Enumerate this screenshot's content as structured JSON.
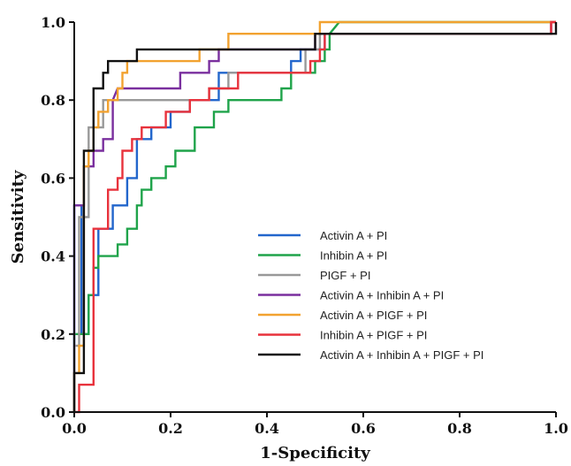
{
  "chart_data": {
    "type": "line",
    "xlabel": "1-Specificity",
    "ylabel": "Sensitivity",
    "xlim": [
      0,
      1
    ],
    "ylim": [
      0,
      1
    ],
    "x_ticks": [
      "0.0",
      "0.2",
      "0.4",
      "0.6",
      "0.8",
      "1.0"
    ],
    "y_ticks": [
      "0.0",
      "0.2",
      "0.4",
      "0.6",
      "0.8",
      "1.0"
    ],
    "grid": false,
    "legend_position": "bottom-right",
    "series": [
      {
        "name": "Activin A + PI",
        "color": "#2266cc",
        "points": [
          [
            0,
            0
          ],
          [
            0,
            0.53
          ],
          [
            0.015,
            0.53
          ],
          [
            0.015,
            0.2
          ],
          [
            0.03,
            0.2
          ],
          [
            0.03,
            0.3
          ],
          [
            0.05,
            0.3
          ],
          [
            0.05,
            0.47
          ],
          [
            0.08,
            0.47
          ],
          [
            0.08,
            0.53
          ],
          [
            0.11,
            0.53
          ],
          [
            0.11,
            0.6
          ],
          [
            0.13,
            0.6
          ],
          [
            0.13,
            0.7
          ],
          [
            0.16,
            0.7
          ],
          [
            0.16,
            0.73
          ],
          [
            0.2,
            0.73
          ],
          [
            0.2,
            0.77
          ],
          [
            0.24,
            0.77
          ],
          [
            0.24,
            0.8
          ],
          [
            0.3,
            0.8
          ],
          [
            0.3,
            0.87
          ],
          [
            0.45,
            0.87
          ],
          [
            0.45,
            0.9
          ],
          [
            0.47,
            0.9
          ],
          [
            0.47,
            0.93
          ],
          [
            0.52,
            0.93
          ],
          [
            0.52,
            0.97
          ],
          [
            0.99,
            0.97
          ],
          [
            0.99,
            1.0
          ],
          [
            1.0,
            1.0
          ]
        ]
      },
      {
        "name": "Inhibin A + PI",
        "color": "#1fa34a",
        "points": [
          [
            0,
            0
          ],
          [
            0,
            0.2
          ],
          [
            0.03,
            0.2
          ],
          [
            0.03,
            0.3
          ],
          [
            0.04,
            0.3
          ],
          [
            0.04,
            0.37
          ],
          [
            0.05,
            0.37
          ],
          [
            0.05,
            0.4
          ],
          [
            0.09,
            0.4
          ],
          [
            0.09,
            0.43
          ],
          [
            0.11,
            0.43
          ],
          [
            0.11,
            0.47
          ],
          [
            0.13,
            0.47
          ],
          [
            0.13,
            0.53
          ],
          [
            0.14,
            0.53
          ],
          [
            0.14,
            0.57
          ],
          [
            0.16,
            0.57
          ],
          [
            0.16,
            0.6
          ],
          [
            0.19,
            0.6
          ],
          [
            0.19,
            0.63
          ],
          [
            0.21,
            0.63
          ],
          [
            0.21,
            0.67
          ],
          [
            0.25,
            0.67
          ],
          [
            0.25,
            0.73
          ],
          [
            0.29,
            0.73
          ],
          [
            0.29,
            0.77
          ],
          [
            0.32,
            0.77
          ],
          [
            0.32,
            0.8
          ],
          [
            0.43,
            0.8
          ],
          [
            0.43,
            0.83
          ],
          [
            0.45,
            0.83
          ],
          [
            0.45,
            0.87
          ],
          [
            0.5,
            0.87
          ],
          [
            0.5,
            0.9
          ],
          [
            0.52,
            0.9
          ],
          [
            0.52,
            0.93
          ],
          [
            0.53,
            0.93
          ],
          [
            0.53,
            0.97
          ],
          [
            0.55,
            1.0
          ],
          [
            1.0,
            1.0
          ]
        ]
      },
      {
        "name": "PIGF + PI",
        "color": "#999999",
        "points": [
          [
            0,
            0
          ],
          [
            0,
            0.17
          ],
          [
            0.01,
            0.17
          ],
          [
            0.01,
            0.5
          ],
          [
            0.03,
            0.5
          ],
          [
            0.03,
            0.73
          ],
          [
            0.06,
            0.73
          ],
          [
            0.06,
            0.8
          ],
          [
            0.28,
            0.8
          ],
          [
            0.28,
            0.83
          ],
          [
            0.32,
            0.83
          ],
          [
            0.32,
            0.87
          ],
          [
            0.48,
            0.87
          ],
          [
            0.48,
            0.93
          ],
          [
            0.51,
            0.93
          ],
          [
            0.51,
            0.97
          ],
          [
            0.99,
            0.97
          ],
          [
            0.99,
            1.0
          ],
          [
            1.0,
            1.0
          ]
        ]
      },
      {
        "name": "Activin A + Inhibin A + PI",
        "color": "#7a2f9e",
        "points": [
          [
            0,
            0
          ],
          [
            0,
            0.53
          ],
          [
            0.02,
            0.53
          ],
          [
            0.02,
            0.63
          ],
          [
            0.04,
            0.63
          ],
          [
            0.04,
            0.67
          ],
          [
            0.06,
            0.67
          ],
          [
            0.06,
            0.7
          ],
          [
            0.08,
            0.7
          ],
          [
            0.08,
            0.8
          ],
          [
            0.09,
            0.83
          ],
          [
            0.22,
            0.83
          ],
          [
            0.22,
            0.87
          ],
          [
            0.28,
            0.87
          ],
          [
            0.28,
            0.9
          ],
          [
            0.3,
            0.9
          ],
          [
            0.3,
            0.93
          ],
          [
            0.5,
            0.93
          ],
          [
            0.5,
            0.97
          ],
          [
            0.99,
            0.97
          ],
          [
            0.99,
            1.0
          ],
          [
            1.0,
            1.0
          ]
        ]
      },
      {
        "name": "Activin A + PIGF + PI",
        "color": "#f2a230",
        "points": [
          [
            0,
            0
          ],
          [
            0,
            0.1
          ],
          [
            0.01,
            0.1
          ],
          [
            0.01,
            0.17
          ],
          [
            0.02,
            0.17
          ],
          [
            0.02,
            0.63
          ],
          [
            0.03,
            0.63
          ],
          [
            0.03,
            0.67
          ],
          [
            0.04,
            0.67
          ],
          [
            0.04,
            0.73
          ],
          [
            0.05,
            0.73
          ],
          [
            0.05,
            0.77
          ],
          [
            0.07,
            0.77
          ],
          [
            0.07,
            0.8
          ],
          [
            0.09,
            0.8
          ],
          [
            0.09,
            0.83
          ],
          [
            0.1,
            0.83
          ],
          [
            0.1,
            0.87
          ],
          [
            0.11,
            0.87
          ],
          [
            0.11,
            0.9
          ],
          [
            0.26,
            0.9
          ],
          [
            0.26,
            0.93
          ],
          [
            0.32,
            0.93
          ],
          [
            0.32,
            0.97
          ],
          [
            0.51,
            0.97
          ],
          [
            0.51,
            1.0
          ],
          [
            1.0,
            1.0
          ]
        ]
      },
      {
        "name": "Inhibin A + PIGF + PI",
        "color": "#e8323c",
        "points": [
          [
            0,
            0
          ],
          [
            0.01,
            0
          ],
          [
            0.01,
            0.07
          ],
          [
            0.04,
            0.07
          ],
          [
            0.04,
            0.47
          ],
          [
            0.07,
            0.47
          ],
          [
            0.07,
            0.57
          ],
          [
            0.09,
            0.57
          ],
          [
            0.09,
            0.6
          ],
          [
            0.1,
            0.6
          ],
          [
            0.1,
            0.67
          ],
          [
            0.12,
            0.67
          ],
          [
            0.12,
            0.7
          ],
          [
            0.14,
            0.7
          ],
          [
            0.14,
            0.73
          ],
          [
            0.19,
            0.73
          ],
          [
            0.19,
            0.77
          ],
          [
            0.24,
            0.77
          ],
          [
            0.24,
            0.8
          ],
          [
            0.28,
            0.8
          ],
          [
            0.28,
            0.83
          ],
          [
            0.34,
            0.83
          ],
          [
            0.34,
            0.87
          ],
          [
            0.49,
            0.87
          ],
          [
            0.49,
            0.9
          ],
          [
            0.51,
            0.9
          ],
          [
            0.51,
            0.93
          ],
          [
            0.52,
            0.93
          ],
          [
            0.52,
            0.97
          ],
          [
            0.99,
            0.97
          ],
          [
            0.99,
            1.0
          ],
          [
            1.0,
            1.0
          ]
        ]
      },
      {
        "name": "Activin A + Inhibin A + PIGF + PI",
        "color": "#111111",
        "points": [
          [
            0,
            0
          ],
          [
            0,
            0.1
          ],
          [
            0.02,
            0.1
          ],
          [
            0.02,
            0.67
          ],
          [
            0.04,
            0.67
          ],
          [
            0.04,
            0.83
          ],
          [
            0.06,
            0.83
          ],
          [
            0.06,
            0.87
          ],
          [
            0.07,
            0.87
          ],
          [
            0.07,
            0.9
          ],
          [
            0.13,
            0.9
          ],
          [
            0.13,
            0.93
          ],
          [
            0.5,
            0.93
          ],
          [
            0.5,
            0.97
          ],
          [
            1.0,
            0.97
          ],
          [
            1.0,
            1.0
          ]
        ]
      }
    ]
  }
}
